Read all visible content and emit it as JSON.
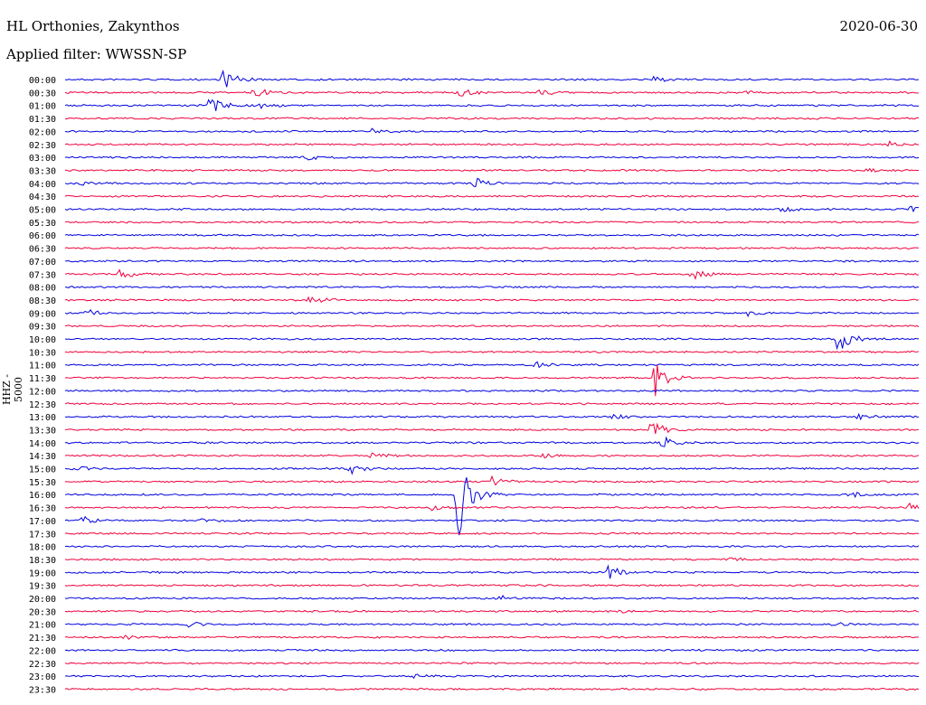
{
  "header": {
    "station": "HL Orthonies, Zakynthos",
    "filter": "Applied filter: WWSSN-SP",
    "date": "2020-06-30"
  },
  "colors": {
    "line_a": "#0000e0",
    "line_b": "#f0003c"
  },
  "chart_data": {
    "type": "line",
    "title": "HL Orthonies, Zakynthos",
    "ylabel": "HHZ - 5000",
    "grid": false,
    "rows": [
      {
        "label": "00:00",
        "color": "#0000e0",
        "events": [
          [
            0.185,
            12
          ],
          [
            0.69,
            3
          ]
        ]
      },
      {
        "label": "00:30",
        "color": "#f0003c",
        "events": [
          [
            0.22,
            7
          ],
          [
            0.46,
            6
          ],
          [
            0.555,
            4
          ],
          [
            0.785,
            3
          ]
        ]
      },
      {
        "label": "01:00",
        "color": "#0000e0",
        "events": [
          [
            0.17,
            13
          ],
          [
            0.23,
            3
          ]
        ]
      },
      {
        "label": "01:30",
        "color": "#f0003c",
        "events": []
      },
      {
        "label": "02:00",
        "color": "#0000e0",
        "events": [
          [
            0.355,
            4
          ]
        ]
      },
      {
        "label": "02:30",
        "color": "#f0003c",
        "events": [
          [
            0.965,
            3
          ]
        ]
      },
      {
        "label": "03:00",
        "color": "#0000e0",
        "events": [
          [
            0.28,
            4
          ]
        ]
      },
      {
        "label": "03:30",
        "color": "#f0003c",
        "events": [
          [
            0.94,
            2
          ]
        ]
      },
      {
        "label": "04:00",
        "color": "#0000e0",
        "events": [
          [
            0.48,
            6
          ],
          [
            0.02,
            2
          ]
        ]
      },
      {
        "label": "04:30",
        "color": "#f0003c",
        "events": []
      },
      {
        "label": "05:00",
        "color": "#0000e0",
        "events": [
          [
            0.84,
            3
          ],
          [
            0.99,
            3
          ]
        ]
      },
      {
        "label": "05:30",
        "color": "#f0003c",
        "events": []
      },
      {
        "label": "06:00",
        "color": "#0000e0",
        "events": []
      },
      {
        "label": "06:30",
        "color": "#f0003c",
        "events": []
      },
      {
        "label": "07:00",
        "color": "#0000e0",
        "events": []
      },
      {
        "label": "07:30",
        "color": "#f0003c",
        "events": [
          [
            0.065,
            6
          ],
          [
            0.735,
            7
          ]
        ]
      },
      {
        "label": "08:00",
        "color": "#0000e0",
        "events": []
      },
      {
        "label": "08:30",
        "color": "#f0003c",
        "events": [
          [
            0.285,
            6
          ]
        ]
      },
      {
        "label": "09:00",
        "color": "#0000e0",
        "events": [
          [
            0.025,
            4
          ],
          [
            0.8,
            3
          ]
        ]
      },
      {
        "label": "09:30",
        "color": "#f0003c",
        "events": []
      },
      {
        "label": "10:00",
        "color": "#0000e0",
        "events": [
          [
            0.905,
            16
          ]
        ]
      },
      {
        "label": "10:30",
        "color": "#f0003c",
        "events": []
      },
      {
        "label": "11:00",
        "color": "#0000e0",
        "events": [
          [
            0.55,
            3
          ]
        ]
      },
      {
        "label": "11:30",
        "color": "#f0003c",
        "events": [
          [
            0.69,
            22
          ]
        ]
      },
      {
        "label": "12:00",
        "color": "#0000e0",
        "events": []
      },
      {
        "label": "12:30",
        "color": "#f0003c",
        "events": []
      },
      {
        "label": "13:00",
        "color": "#0000e0",
        "events": [
          [
            0.64,
            3
          ],
          [
            0.93,
            3
          ]
        ]
      },
      {
        "label": "13:30",
        "color": "#f0003c",
        "events": [
          [
            0.685,
            14
          ]
        ]
      },
      {
        "label": "14:00",
        "color": "#0000e0",
        "events": [
          [
            0.7,
            7
          ]
        ]
      },
      {
        "label": "14:30",
        "color": "#f0003c",
        "events": [
          [
            0.36,
            4
          ],
          [
            0.56,
            3
          ]
        ]
      },
      {
        "label": "15:00",
        "color": "#0000e0",
        "events": [
          [
            0.335,
            7
          ],
          [
            0.01,
            3
          ]
        ]
      },
      {
        "label": "15:30",
        "color": "#f0003c",
        "events": [
          [
            0.5,
            5
          ]
        ]
      },
      {
        "label": "16:00",
        "color": "#0000e0",
        "events": [
          [
            0.46,
            55
          ],
          [
            0.92,
            4
          ]
        ]
      },
      {
        "label": "16:30",
        "color": "#f0003c",
        "events": [
          [
            0.43,
            3
          ],
          [
            0.99,
            5
          ]
        ]
      },
      {
        "label": "17:00",
        "color": "#0000e0",
        "events": [
          [
            0.02,
            5
          ],
          [
            0.16,
            3
          ]
        ]
      },
      {
        "label": "17:30",
        "color": "#f0003c",
        "events": []
      },
      {
        "label": "18:00",
        "color": "#0000e0",
        "events": []
      },
      {
        "label": "18:30",
        "color": "#f0003c",
        "events": [
          [
            0.78,
            2
          ]
        ]
      },
      {
        "label": "19:00",
        "color": "#0000e0",
        "events": [
          [
            0.635,
            11
          ]
        ]
      },
      {
        "label": "19:30",
        "color": "#f0003c",
        "events": []
      },
      {
        "label": "20:00",
        "color": "#0000e0",
        "events": [
          [
            0.51,
            3
          ]
        ]
      },
      {
        "label": "20:30",
        "color": "#f0003c",
        "events": [
          [
            0.65,
            2
          ]
        ]
      },
      {
        "label": "21:00",
        "color": "#0000e0",
        "events": [
          [
            0.145,
            3
          ],
          [
            0.9,
            2
          ]
        ]
      },
      {
        "label": "21:30",
        "color": "#f0003c",
        "events": [
          [
            0.07,
            3
          ]
        ]
      },
      {
        "label": "22:00",
        "color": "#0000e0",
        "events": []
      },
      {
        "label": "22:30",
        "color": "#f0003c",
        "events": []
      },
      {
        "label": "23:00",
        "color": "#0000e0",
        "events": [
          [
            0.41,
            2
          ]
        ]
      },
      {
        "label": "23:30",
        "color": "#f0003c",
        "events": []
      }
    ]
  }
}
